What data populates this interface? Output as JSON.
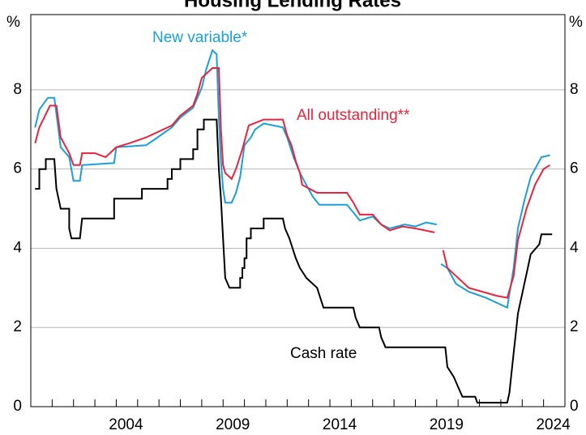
{
  "chart_data": {
    "type": "line",
    "title": "Housing Lending Rates",
    "y_unit_left": "%",
    "y_unit_right": "%",
    "xlim": [
      2000,
      2025
    ],
    "ylim": [
      0,
      9.9
    ],
    "xticks": [
      2004,
      2009,
      2014,
      2019,
      2024
    ],
    "xminor_ticks": [
      2001,
      2002,
      2003,
      2004,
      2005,
      2006,
      2007,
      2008,
      2009,
      2010,
      2011,
      2012,
      2013,
      2014,
      2015,
      2016,
      2017,
      2018,
      2019,
      2020,
      2021,
      2022,
      2023,
      2024
    ],
    "yticks": [
      0,
      2,
      4,
      6,
      8
    ],
    "grid": true,
    "series": [
      {
        "name": "New variable*",
        "color": "#1a9fd8",
        "x": [
          2000.2,
          2000.4,
          2000.8,
          2001.1,
          2001.4,
          2001.8,
          2002.0,
          2002.3,
          2002.4,
          2003.9,
          2004.0,
          2005.4,
          2005.8,
          2006.6,
          2007.0,
          2007.6,
          2007.8,
          2008.0,
          2008.2,
          2008.5,
          2008.7,
          2008.8,
          2008.9,
          2009.0,
          2009.1,
          2009.4,
          2009.6,
          2009.8,
          2010.0,
          2010.3,
          2010.5,
          2010.9,
          2011.8,
          2012.0,
          2012.3,
          2012.6,
          2012.9,
          2013.2,
          2013.5,
          2014.8,
          2015.1,
          2015.4,
          2016.0,
          2016.4,
          2016.8,
          2017.5,
          2018.0,
          2018.5,
          2019.0,
          2019.1,
          2019.2,
          2019.5,
          2019.9,
          2020.5,
          2021.3,
          2022.3,
          2022.6,
          2022.8,
          2023.1,
          2023.4,
          2023.7,
          2023.9,
          2024.3
        ],
        "values": [
          7.05,
          7.5,
          7.8,
          7.8,
          6.55,
          6.3,
          5.7,
          5.7,
          6.1,
          6.15,
          6.55,
          6.6,
          6.75,
          7.05,
          7.3,
          7.55,
          7.8,
          8.05,
          8.5,
          9.0,
          8.9,
          7.3,
          6.2,
          5.5,
          5.15,
          5.15,
          5.4,
          5.8,
          6.6,
          6.8,
          7.0,
          7.15,
          7.05,
          6.8,
          6.3,
          5.9,
          5.6,
          5.3,
          5.1,
          5.1,
          4.9,
          4.7,
          4.8,
          4.6,
          4.5,
          4.6,
          4.55,
          4.65,
          4.6,
          null,
          3.6,
          3.5,
          3.1,
          2.9,
          2.75,
          2.5,
          3.5,
          4.5,
          5.2,
          5.8,
          6.1,
          6.3,
          6.35
        ]
      },
      {
        "name": "All outstanding**",
        "color": "#e8243c",
        "x": [
          2000.2,
          2000.4,
          2000.9,
          2001.2,
          2001.4,
          2001.8,
          2002.0,
          2002.3,
          2002.4,
          2003.0,
          2003.5,
          2004.0,
          2004.6,
          2005.4,
          2006.6,
          2007.0,
          2007.6,
          2007.8,
          2008.0,
          2008.5,
          2008.8,
          2008.9,
          2009.0,
          2009.1,
          2009.4,
          2009.6,
          2009.9,
          2010.2,
          2010.9,
          2011.8,
          2012.0,
          2012.2,
          2012.4,
          2012.6,
          2012.7,
          2013.4,
          2014.8,
          2015.1,
          2015.4,
          2016.0,
          2016.4,
          2016.8,
          2017.4,
          2018.0,
          2018.9,
          2019.0,
          2019.3,
          2019.5,
          2019.9,
          2020.5,
          2021.8,
          2022.3,
          2022.6,
          2022.8,
          2023.2,
          2023.6,
          2024.0,
          2024.3
        ],
        "values": [
          6.65,
          7.05,
          7.6,
          7.6,
          6.8,
          6.4,
          6.1,
          6.1,
          6.4,
          6.4,
          6.3,
          6.55,
          6.65,
          6.8,
          7.1,
          7.35,
          7.6,
          7.9,
          8.3,
          8.55,
          8.55,
          7.0,
          6.1,
          5.9,
          5.75,
          6.0,
          6.5,
          7.1,
          7.25,
          7.25,
          6.85,
          6.6,
          6.2,
          5.9,
          5.6,
          5.4,
          5.4,
          5.15,
          4.85,
          4.85,
          4.6,
          4.45,
          4.55,
          4.5,
          4.4,
          null,
          3.95,
          3.5,
          3.3,
          3.0,
          2.8,
          2.75,
          3.3,
          4.2,
          5.0,
          5.6,
          6.0,
          6.1
        ]
      },
      {
        "name": "Cash rate",
        "color": "#000000",
        "x": [
          2000.2,
          2000.4,
          2000.4,
          2000.7,
          2000.7,
          2001.1,
          2001.2,
          2001.4,
          2001.8,
          2001.8,
          2001.9,
          2002.3,
          2002.4,
          2003.9,
          2003.9,
          2005.2,
          2005.2,
          2006.4,
          2006.4,
          2006.6,
          2006.6,
          2007.0,
          2007.0,
          2007.6,
          2007.6,
          2007.8,
          2007.8,
          2008.1,
          2008.1,
          2008.7,
          2008.8,
          2008.9,
          2009.0,
          2009.1,
          2009.3,
          2009.8,
          2009.8,
          2009.9,
          2009.9,
          2010.0,
          2010.0,
          2010.1,
          2010.1,
          2010.3,
          2010.3,
          2010.9,
          2010.9,
          2011.8,
          2011.9,
          2012.1,
          2012.4,
          2012.6,
          2012.9,
          2013.4,
          2013.7,
          2015.1,
          2015.2,
          2015.4,
          2016.3,
          2016.4,
          2016.6,
          2019.4,
          2019.5,
          2019.8,
          2020.0,
          2020.2,
          2020.8,
          2020.9,
          2022.3,
          2022.4,
          2022.5,
          2022.6,
          2022.7,
          2022.8,
          2022.9,
          2023.0,
          2023.1,
          2023.2,
          2023.3,
          2023.4,
          2023.8,
          2023.9,
          2024.4
        ],
        "values": [
          5.5,
          5.5,
          6.0,
          6.0,
          6.25,
          6.25,
          5.5,
          5.0,
          5.0,
          4.5,
          4.25,
          4.25,
          4.75,
          4.75,
          5.25,
          5.25,
          5.5,
          5.5,
          5.75,
          5.75,
          6.0,
          6.0,
          6.25,
          6.25,
          6.5,
          6.5,
          7.0,
          7.0,
          7.25,
          7.25,
          6.0,
          5.25,
          4.25,
          3.25,
          3.0,
          3.0,
          3.25,
          3.25,
          3.5,
          3.5,
          3.75,
          3.75,
          4.25,
          4.25,
          4.5,
          4.5,
          4.75,
          4.75,
          4.5,
          4.25,
          3.75,
          3.5,
          3.25,
          3.0,
          2.5,
          2.5,
          2.25,
          2.0,
          2.0,
          1.75,
          1.5,
          1.5,
          1.0,
          0.75,
          0.5,
          0.25,
          0.25,
          0.1,
          0.1,
          0.35,
          0.85,
          1.35,
          1.85,
          2.35,
          2.6,
          2.85,
          3.1,
          3.35,
          3.6,
          3.85,
          4.1,
          4.35,
          4.35
        ]
      }
    ]
  }
}
